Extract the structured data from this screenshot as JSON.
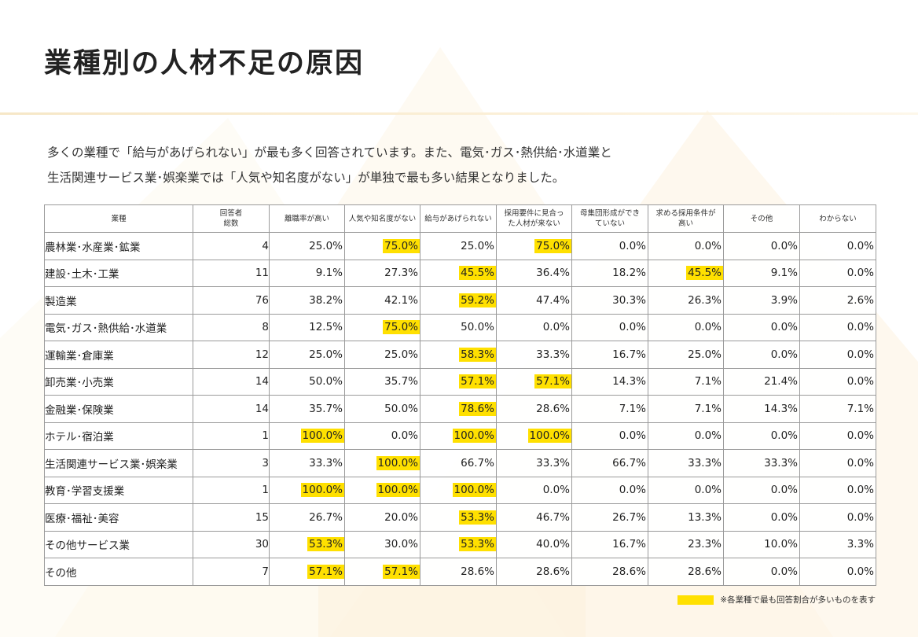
{
  "page": {
    "title": "業種別の人材不足の原因",
    "intro_line1": "多くの業種で「給与があげられない」が最も多く回答されています。また、電気･ガス･熱供給･水道業と",
    "intro_line2": "生活関連サービス業･娯楽業では「人気や知名度がない」が単独で最も多い結果となりました。"
  },
  "table": {
    "header": {
      "industry": "業種",
      "respondents_line1": "回答者",
      "respondents_line2": "総数",
      "causes": [
        {
          "line1": "離職率が高い",
          "line2": ""
        },
        {
          "line1": "人気や知名度がない",
          "line2": ""
        },
        {
          "line1": "給与があげられない",
          "line2": ""
        },
        {
          "line1": "採用要件に見合っ",
          "line2": "た人材が来ない"
        },
        {
          "line1": "母集団形成ができ",
          "line2": "ていない"
        },
        {
          "line1": "求める採用条件が",
          "line2": "高い"
        },
        {
          "line1": "その他",
          "line2": ""
        },
        {
          "line1": "わからない",
          "line2": ""
        }
      ]
    },
    "rows": [
      {
        "industry": "農林業･水産業･鉱業",
        "count": "4",
        "values": [
          "25.0%",
          "75.0%",
          "25.0%",
          "75.0%",
          "0.0%",
          "0.0%",
          "0.0%",
          "0.0%"
        ],
        "highlight": [
          false,
          true,
          false,
          true,
          false,
          false,
          false,
          false
        ]
      },
      {
        "industry": "建設･土木･工業",
        "count": "11",
        "values": [
          "9.1%",
          "27.3%",
          "45.5%",
          "36.4%",
          "18.2%",
          "45.5%",
          "9.1%",
          "0.0%"
        ],
        "highlight": [
          false,
          false,
          true,
          false,
          false,
          true,
          false,
          false
        ]
      },
      {
        "industry": "製造業",
        "count": "76",
        "values": [
          "38.2%",
          "42.1%",
          "59.2%",
          "47.4%",
          "30.3%",
          "26.3%",
          "3.9%",
          "2.6%"
        ],
        "highlight": [
          false,
          false,
          true,
          false,
          false,
          false,
          false,
          false
        ]
      },
      {
        "industry": "電気･ガス･熱供給･水道業",
        "count": "8",
        "values": [
          "12.5%",
          "75.0%",
          "50.0%",
          "0.0%",
          "0.0%",
          "0.0%",
          "0.0%",
          "0.0%"
        ],
        "highlight": [
          false,
          true,
          false,
          false,
          false,
          false,
          false,
          false
        ]
      },
      {
        "industry": "運輸業･倉庫業",
        "count": "12",
        "values": [
          "25.0%",
          "25.0%",
          "58.3%",
          "33.3%",
          "16.7%",
          "25.0%",
          "0.0%",
          "0.0%"
        ],
        "highlight": [
          false,
          false,
          true,
          false,
          false,
          false,
          false,
          false
        ]
      },
      {
        "industry": "卸売業･小売業",
        "count": "14",
        "values": [
          "50.0%",
          "35.7%",
          "57.1%",
          "57.1%",
          "14.3%",
          "7.1%",
          "21.4%",
          "0.0%"
        ],
        "highlight": [
          false,
          false,
          true,
          true,
          false,
          false,
          false,
          false
        ]
      },
      {
        "industry": "金融業･保険業",
        "count": "14",
        "values": [
          "35.7%",
          "50.0%",
          "78.6%",
          "28.6%",
          "7.1%",
          "7.1%",
          "14.3%",
          "7.1%"
        ],
        "highlight": [
          false,
          false,
          true,
          false,
          false,
          false,
          false,
          false
        ]
      },
      {
        "industry": "ホテル･宿泊業",
        "count": "1",
        "values": [
          "100.0%",
          "0.0%",
          "100.0%",
          "100.0%",
          "0.0%",
          "0.0%",
          "0.0%",
          "0.0%"
        ],
        "highlight": [
          true,
          false,
          true,
          true,
          false,
          false,
          false,
          false
        ]
      },
      {
        "industry": "生活関連サービス業･娯楽業",
        "count": "3",
        "values": [
          "33.3%",
          "100.0%",
          "66.7%",
          "33.3%",
          "66.7%",
          "33.3%",
          "33.3%",
          "0.0%"
        ],
        "highlight": [
          false,
          true,
          false,
          false,
          false,
          false,
          false,
          false
        ]
      },
      {
        "industry": "教育･学習支援業",
        "count": "1",
        "values": [
          "100.0%",
          "100.0%",
          "100.0%",
          "0.0%",
          "0.0%",
          "0.0%",
          "0.0%",
          "0.0%"
        ],
        "highlight": [
          true,
          true,
          true,
          false,
          false,
          false,
          false,
          false
        ]
      },
      {
        "industry": "医療･福祉･美容",
        "count": "15",
        "values": [
          "26.7%",
          "20.0%",
          "53.3%",
          "46.7%",
          "26.7%",
          "13.3%",
          "0.0%",
          "0.0%"
        ],
        "highlight": [
          false,
          false,
          true,
          false,
          false,
          false,
          false,
          false
        ]
      },
      {
        "industry": "その他サービス業",
        "count": "30",
        "values": [
          "53.3%",
          "30.0%",
          "53.3%",
          "40.0%",
          "16.7%",
          "23.3%",
          "10.0%",
          "3.3%"
        ],
        "highlight": [
          true,
          false,
          true,
          false,
          false,
          false,
          false,
          false
        ]
      },
      {
        "industry": "その他",
        "count": "7",
        "values": [
          "57.1%",
          "57.1%",
          "28.6%",
          "28.6%",
          "28.6%",
          "28.6%",
          "0.0%",
          "0.0%"
        ],
        "highlight": [
          true,
          true,
          false,
          false,
          false,
          false,
          false,
          false
        ]
      }
    ]
  },
  "legend": {
    "text": "※各業種で最も回答割合が多いものを表す",
    "color": "#ffe000"
  }
}
